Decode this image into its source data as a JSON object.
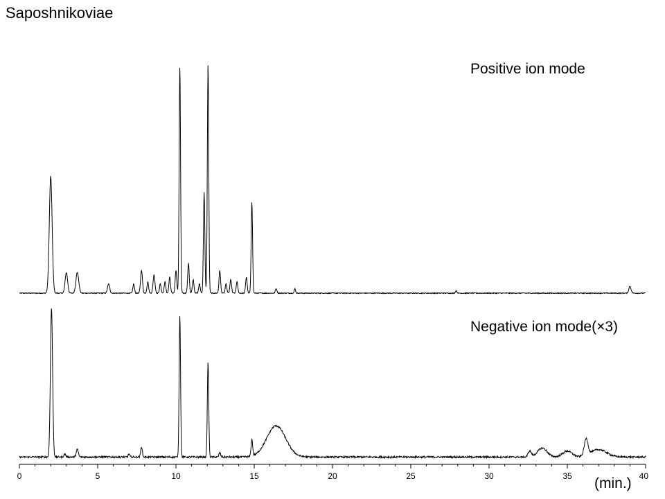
{
  "chart_data": {
    "type": "line",
    "title": "Saposhnikoviae",
    "xlabel": "(min.)",
    "ylabel": "",
    "xlim": [
      0,
      40
    ],
    "xticks": [
      0,
      5,
      10,
      15,
      20,
      25,
      30,
      35,
      40
    ],
    "grid": false,
    "series": [
      {
        "name": "Positive ion mode",
        "baseline": 0.0,
        "peaks": [
          {
            "t": 2.0,
            "h": 0.51,
            "w": 0.09
          },
          {
            "t": 3.0,
            "h": 0.09,
            "w": 0.08
          },
          {
            "t": 3.7,
            "h": 0.09,
            "w": 0.09
          },
          {
            "t": 5.7,
            "h": 0.04,
            "w": 0.07
          },
          {
            "t": 7.3,
            "h": 0.04,
            "w": 0.05
          },
          {
            "t": 7.8,
            "h": 0.1,
            "w": 0.06
          },
          {
            "t": 8.2,
            "h": 0.05,
            "w": 0.05
          },
          {
            "t": 8.6,
            "h": 0.08,
            "w": 0.06
          },
          {
            "t": 9.0,
            "h": 0.04,
            "w": 0.05
          },
          {
            "t": 9.3,
            "h": 0.05,
            "w": 0.05
          },
          {
            "t": 9.6,
            "h": 0.07,
            "w": 0.05
          },
          {
            "t": 10.0,
            "h": 0.1,
            "w": 0.05
          },
          {
            "t": 10.25,
            "h": 0.99,
            "w": 0.045
          },
          {
            "t": 10.8,
            "h": 0.13,
            "w": 0.05
          },
          {
            "t": 11.1,
            "h": 0.06,
            "w": 0.05
          },
          {
            "t": 11.5,
            "h": 0.04,
            "w": 0.05
          },
          {
            "t": 11.8,
            "h": 0.44,
            "w": 0.045
          },
          {
            "t": 12.05,
            "h": 1.0,
            "w": 0.045
          },
          {
            "t": 12.8,
            "h": 0.1,
            "w": 0.05
          },
          {
            "t": 13.2,
            "h": 0.04,
            "w": 0.05
          },
          {
            "t": 13.5,
            "h": 0.06,
            "w": 0.05
          },
          {
            "t": 13.9,
            "h": 0.05,
            "w": 0.05
          },
          {
            "t": 14.5,
            "h": 0.07,
            "w": 0.05
          },
          {
            "t": 14.85,
            "h": 0.4,
            "w": 0.045
          },
          {
            "t": 16.4,
            "h": 0.02,
            "w": 0.05
          },
          {
            "t": 17.6,
            "h": 0.02,
            "w": 0.04
          },
          {
            "t": 27.9,
            "h": 0.01,
            "w": 0.05
          },
          {
            "t": 39.0,
            "h": 0.03,
            "w": 0.07
          }
        ]
      },
      {
        "name": "Negative ion mode(×3)",
        "baseline": 0.012,
        "peaks": [
          {
            "t": 2.05,
            "h": 1.0,
            "w": 0.07
          },
          {
            "t": 2.9,
            "h": 0.02,
            "w": 0.06
          },
          {
            "t": 3.7,
            "h": 0.05,
            "w": 0.07
          },
          {
            "t": 7.0,
            "h": 0.02,
            "w": 0.05
          },
          {
            "t": 7.8,
            "h": 0.07,
            "w": 0.05
          },
          {
            "t": 10.25,
            "h": 0.95,
            "w": 0.045
          },
          {
            "t": 12.05,
            "h": 0.64,
            "w": 0.045
          },
          {
            "t": 12.8,
            "h": 0.03,
            "w": 0.05
          },
          {
            "t": 14.85,
            "h": 0.11,
            "w": 0.05
          },
          {
            "t": 16.4,
            "h": 0.21,
            "w": 0.6
          },
          {
            "t": 32.6,
            "h": 0.04,
            "w": 0.1
          },
          {
            "t": 33.4,
            "h": 0.06,
            "w": 0.3
          },
          {
            "t": 35.0,
            "h": 0.04,
            "w": 0.3
          },
          {
            "t": 36.2,
            "h": 0.11,
            "w": 0.12
          },
          {
            "t": 37.0,
            "h": 0.05,
            "w": 0.5
          }
        ]
      }
    ]
  }
}
